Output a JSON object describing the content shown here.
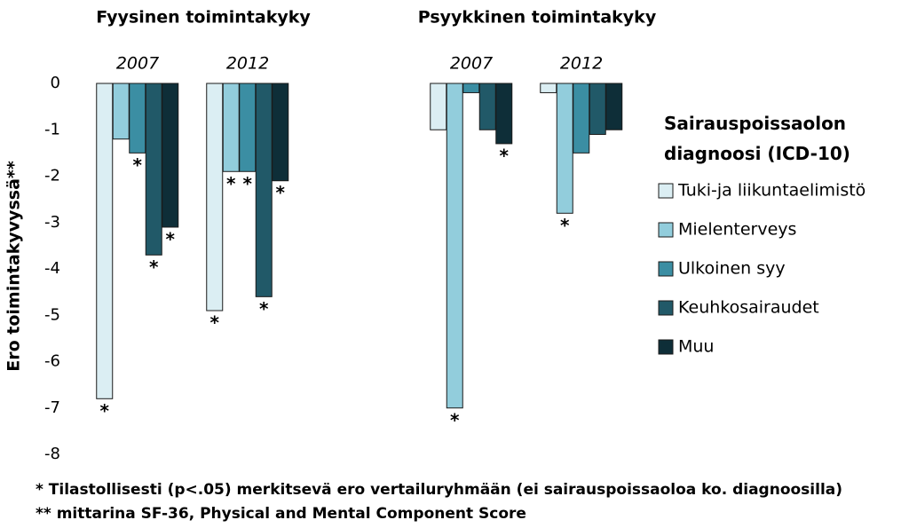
{
  "chart_data": {
    "type": "bar",
    "ylabel": "Ero toimintakyvyssä**",
    "groups": [
      {
        "title": "Fyysinen toimintakyky",
        "categories": [
          "2007",
          "2012"
        ]
      },
      {
        "title": "Psyykkinen toimintakyky",
        "categories": [
          "2007",
          "2012"
        ]
      }
    ],
    "legend_title": "Sairauspoissaolon diagnoosi (ICD-10)",
    "series": [
      {
        "name": "Tuki-ja liikuntaelimistö",
        "color": "#dbeef3",
        "values": [
          -6.8,
          -4.9,
          -1.0,
          -0.2
        ],
        "significance": [
          "*",
          "*",
          null,
          null
        ]
      },
      {
        "name": "Mielenterveys",
        "color": "#92cddc",
        "values": [
          -1.2,
          -1.9,
          -7.0,
          -2.8
        ],
        "significance": [
          null,
          "*",
          "*",
          "*"
        ]
      },
      {
        "name": "Ulkoinen syy",
        "color": "#3b8ea3",
        "values": [
          -1.5,
          -1.9,
          -0.2,
          -1.5
        ],
        "significance": [
          "*",
          "*",
          null,
          null
        ]
      },
      {
        "name": "Keuhkosairaudet",
        "color": "#215968",
        "values": [
          -3.7,
          -4.6,
          -1.0,
          -1.1
        ],
        "significance": [
          "*",
          "*",
          null,
          null
        ]
      },
      {
        "name": "Muu",
        "color": "#0e2e38",
        "values": [
          -3.1,
          -2.1,
          -1.3,
          -1.0
        ],
        "significance": [
          "*",
          "*",
          "*",
          null
        ]
      }
    ],
    "ylim": [
      -8,
      0
    ],
    "yticks": [
      0,
      -1,
      -2,
      -3,
      -4,
      -5,
      -6,
      -7,
      -8
    ],
    "notes": [
      "* Tilastollisesti (p<.05) merkitsevä ero vertailuryhmään (ei sairauspoissaoloa ko. diagnoosilla)",
      "** mittarina SF-36, Physical and Mental Component Score"
    ]
  }
}
